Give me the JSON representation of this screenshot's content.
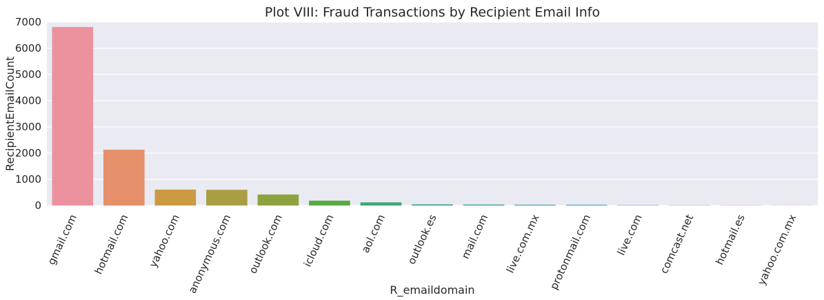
{
  "chart_data": {
    "type": "bar",
    "title": "Plot VIII: Fraud Transactions by Recipient Email Info",
    "xlabel": "R_emaildomain",
    "ylabel": "RecipientEmailCount",
    "ylim": [
      0,
      7000
    ],
    "yticks": [
      0,
      1000,
      2000,
      3000,
      4000,
      5000,
      6000,
      7000
    ],
    "grid": true,
    "categories": [
      "gmail.com",
      "hotmail.com",
      "yahoo.com",
      "anonymous.com",
      "outlook.com",
      "icloud.com",
      "aol.com",
      "outlook.es",
      "mail.com",
      "live.com.mx",
      "protonmail.com",
      "live.com",
      "comcast.net",
      "hotmail.es",
      "yahoo.com.mx"
    ],
    "values": [
      6811,
      2128,
      608,
      600,
      420,
      185,
      120,
      45,
      38,
      32,
      30,
      15,
      12,
      10,
      8
    ],
    "colors": [
      "#EC929F",
      "#E58F6B",
      "#CC9A43",
      "#AA9E44",
      "#8DA33F",
      "#57AB3F",
      "#3EA877",
      "#3EA597",
      "#3FA4A6",
      "#41A1B5",
      "#43A2C8",
      "#6FA3DF",
      "#A69DEB",
      "#D28DE6",
      "#E88CCB"
    ],
    "background": "#EAEAF2",
    "gridcolor": "#FFFFFF"
  }
}
